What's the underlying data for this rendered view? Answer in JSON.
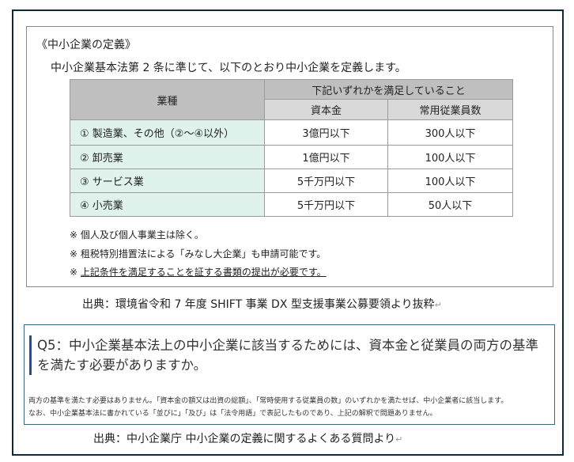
{
  "definition": {
    "title": "《中小企業の定義》",
    "lead": "中小企業基本法第 2 条に準じて、以下のとおり中小企業を定義します。",
    "table": {
      "col_industry": "業種",
      "col_group": "下記いずれかを満足していること",
      "col_capital": "資本金",
      "col_employees": "常用従業員数",
      "rows": [
        {
          "kind": "①  製造業、その他（②～④以外）",
          "capital": "3億円以下",
          "employees": "300人以下"
        },
        {
          "kind": "②  卸売業",
          "capital": "1億円以下",
          "employees": "100人以下"
        },
        {
          "kind": "③  サービス業",
          "capital": "5千万円以下",
          "employees": "100人以下"
        },
        {
          "kind": "④  小売業",
          "capital": "5千万円以下",
          "employees": "50人以下"
        }
      ]
    },
    "notes": [
      "※ 個人及び個人事業主は除く。",
      "※ 租税特別措置法による「みなし大企業」も申請可能です。"
    ],
    "note3_mark": "※ ",
    "note3_text": "上記条件を満足することを証する書類の提出が必要です。"
  },
  "source1": "出典：環境省令和 7 年度 SHIFT 事業  DX 型支援事業公募要領より抜粋",
  "faq": {
    "question": "Q5：中小企業基本法上の中小企業に該当するためには、資本金と従業員の両方の基準を満たす必要がありますか。",
    "answer_lines": [
      "両方の基準を満たす必要はありません。「資本金の額又は出資の総額」、「常時使用する従業員の数」のいずれかを満たせば、中小企業者に該当します。",
      "なお、中小企業基本法に書かれている「並びに」「及び」は「法令用語」で表記したものであり、上記の解釈で問題ありません。"
    ]
  },
  "source2": "出典：中小企業庁  中小企業の定義に関するよくある質問より",
  "return_mark": "↵",
  "colors": {
    "frame": "#0f2a33",
    "header": "#bfbfbf",
    "subheader": "#d9d9d9",
    "industry_cell": "#dff2ec",
    "question_bar": "#1f4fa0"
  }
}
